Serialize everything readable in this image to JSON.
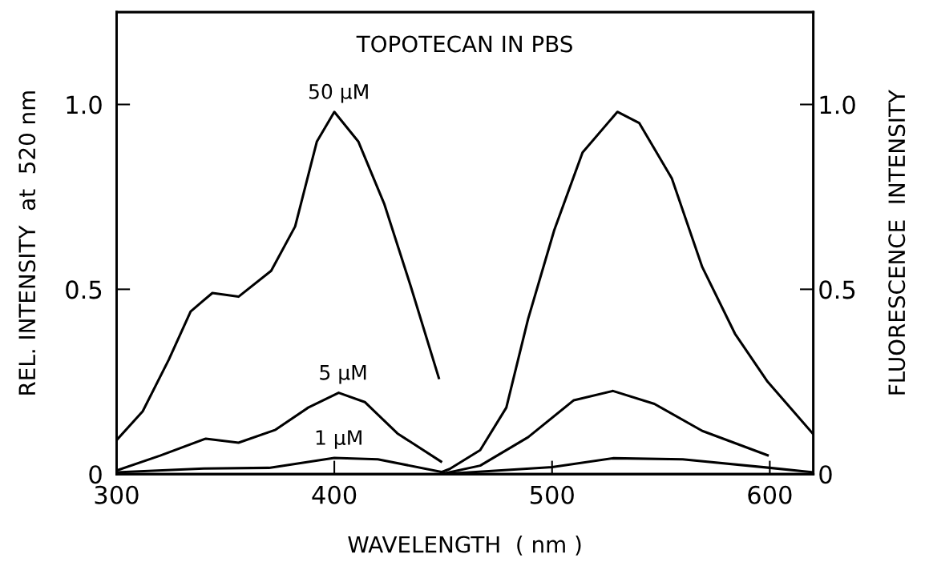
{
  "chart_data": {
    "type": "line",
    "title": "TOPOTECAN IN PBS",
    "xlabel": "WAVELENGTH  ( nm )",
    "ylabel": "REL. INTENSITY  at  520 nm",
    "y2label": "FLUORESCENCE  INTENSITY",
    "xlim": [
      300,
      620
    ],
    "xticks": [
      300,
      400,
      500,
      600
    ],
    "ylim": [
      0,
      1.25
    ],
    "yticks": [
      0,
      0.5,
      {
        "value": 1,
        "label": "1.0"
      }
    ],
    "y2lim": [
      0,
      1.25
    ],
    "y2ticks": [
      0,
      0.5,
      {
        "value": 1,
        "label": "1.0"
      }
    ],
    "grid": false,
    "legend": false,
    "marker": "none",
    "line_style": "solid",
    "series": [
      {
        "color": "#000000",
        "x": [
          300,
          312,
          324,
          334,
          344,
          356,
          371,
          382,
          392,
          400,
          411,
          423,
          435,
          448
        ],
        "values": [
          0.092,
          0.17,
          0.31,
          0.44,
          0.49,
          0.48,
          0.55,
          0.67,
          0.9,
          0.98,
          0.9,
          0.73,
          0.51,
          0.26
        ]
      },
      {
        "color": "#000000",
        "x": [
          300,
          320,
          341,
          356,
          373,
          388,
          402,
          414,
          429,
          449
        ],
        "values": [
          0.01,
          0.05,
          0.096,
          0.085,
          0.12,
          0.18,
          0.22,
          0.195,
          0.11,
          0.034
        ]
      },
      {
        "color": "#000000",
        "x": [
          300,
          340,
          370,
          400,
          420,
          450
        ],
        "values": [
          0.005,
          0.015,
          0.017,
          0.044,
          0.04,
          0.005
        ]
      },
      {
        "color": "#000000",
        "x": [
          449,
          453,
          467,
          479,
          489,
          501,
          514,
          530,
          540,
          555,
          569,
          584,
          599,
          620
        ],
        "values": [
          0.005,
          0.014,
          0.065,
          0.18,
          0.42,
          0.66,
          0.87,
          0.98,
          0.95,
          0.8,
          0.56,
          0.38,
          0.25,
          0.108
        ]
      },
      {
        "color": "#000000",
        "x": [
          449,
          467,
          489,
          510,
          528,
          547,
          569,
          599
        ],
        "values": [
          0.0,
          0.023,
          0.1,
          0.2,
          0.225,
          0.19,
          0.117,
          0.051
        ]
      },
      {
        "color": "#000000",
        "x": [
          449,
          500,
          528,
          560,
          600,
          620
        ],
        "values": [
          0.0,
          0.019,
          0.043,
          0.04,
          0.017,
          0.005
        ]
      }
    ],
    "annotations": [
      "50 µM",
      "5 µM",
      "1 µM"
    ]
  }
}
